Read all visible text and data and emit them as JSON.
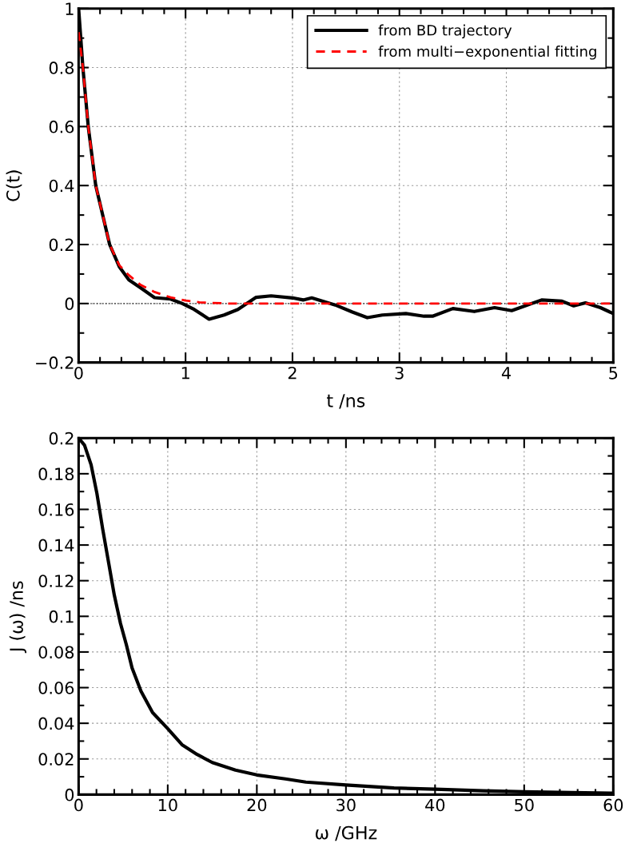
{
  "chart_data": [
    {
      "type": "line",
      "xlabel": "t /ns",
      "ylabel": "C(t)",
      "xlim": [
        0,
        5
      ],
      "ylim": [
        -0.2,
        1
      ],
      "xticks": [
        0,
        1,
        2,
        3,
        4,
        5
      ],
      "yticks": [
        {
          "value": -0.2,
          "label": "−0.2"
        },
        0,
        0.2,
        0.4,
        0.6,
        0.8,
        1
      ],
      "grid": true,
      "legend": "top right",
      "ref_lines": [
        {
          "axis": "y",
          "value": 0,
          "color": "#000000",
          "line_style": "dotted"
        }
      ],
      "series": [
        {
          "name": "from BD trajectory",
          "color": "#000000",
          "line_style": "solid",
          "x": [
            0,
            0.04,
            0.09,
            0.16,
            0.29,
            0.38,
            0.47,
            0.58,
            0.71,
            0.86,
            0.97,
            1.08,
            1.22,
            1.36,
            1.49,
            1.66,
            1.8,
            2.0,
            2.1,
            2.18,
            2.4,
            2.56,
            2.7,
            2.84,
            3.06,
            3.23,
            3.31,
            3.5,
            3.7,
            3.89,
            4.05,
            4.16,
            4.33,
            4.52,
            4.63,
            4.74,
            4.88,
            5.0
          ],
          "values": [
            1.0,
            0.8,
            0.6,
            0.4,
            0.2,
            0.125,
            0.08,
            0.053,
            0.02,
            0.015,
            0.0,
            -0.02,
            -0.053,
            -0.039,
            -0.02,
            0.021,
            0.026,
            0.019,
            0.012,
            0.019,
            -0.005,
            -0.029,
            -0.048,
            -0.039,
            -0.034,
            -0.043,
            -0.043,
            -0.017,
            -0.027,
            -0.014,
            -0.024,
            -0.01,
            0.012,
            0.008,
            -0.008,
            0.002,
            -0.014,
            -0.034
          ]
        },
        {
          "name": "from multi−exponential fitting",
          "color": "#ff0000",
          "line_style": "dashed",
          "x": [
            0,
            0.04,
            0.09,
            0.16,
            0.29,
            0.38,
            0.47,
            0.58,
            0.71,
            0.86,
            1.0,
            1.13,
            1.4,
            2.0,
            3.0,
            4.0,
            5.0
          ],
          "values": [
            0.92,
            0.8,
            0.6,
            0.4,
            0.2,
            0.13,
            0.096,
            0.063,
            0.039,
            0.021,
            0.01,
            0.004,
            0.0,
            0.0,
            0.0,
            0.0,
            0.0
          ]
        }
      ]
    },
    {
      "type": "line",
      "xlabel": "ω /GHz",
      "ylabel": "J (ω) /ns",
      "xlim": [
        0,
        60
      ],
      "ylim": [
        0,
        0.2
      ],
      "xticks": [
        0,
        10,
        20,
        30,
        40,
        50,
        60
      ],
      "yticks": [
        0,
        0.02,
        0.04,
        0.06,
        0.08,
        0.1,
        0.12,
        0.14,
        0.16,
        0.18,
        0.2
      ],
      "grid": true,
      "series": [
        {
          "color": "#000000",
          "line_style": "solid",
          "x": [
            0,
            0.66,
            1.4,
            2.05,
            2.7,
            3.37,
            4.0,
            4.7,
            5.36,
            6.0,
            7.0,
            8.3,
            10,
            11.6,
            13.3,
            15,
            17.6,
            20,
            23.2,
            25.5,
            30,
            35.4,
            40,
            45.4,
            50,
            55.3,
            60
          ],
          "values": [
            0.2,
            0.196,
            0.185,
            0.169,
            0.149,
            0.13,
            0.112,
            0.096,
            0.084,
            0.071,
            0.058,
            0.046,
            0.037,
            0.028,
            0.0225,
            0.018,
            0.0137,
            0.011,
            0.0088,
            0.007,
            0.0054,
            0.0037,
            0.003,
            0.0021,
            0.0016,
            0.0011,
            0.0008
          ]
        }
      ]
    }
  ]
}
